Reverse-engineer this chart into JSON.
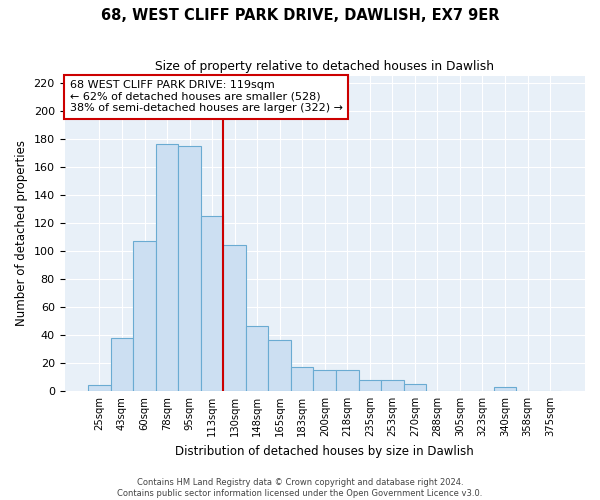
{
  "title": "68, WEST CLIFF PARK DRIVE, DAWLISH, EX7 9ER",
  "subtitle": "Size of property relative to detached houses in Dawlish",
  "xlabel": "Distribution of detached houses by size in Dawlish",
  "ylabel": "Number of detached properties",
  "bar_labels": [
    "25sqm",
    "43sqm",
    "60sqm",
    "78sqm",
    "95sqm",
    "113sqm",
    "130sqm",
    "148sqm",
    "165sqm",
    "183sqm",
    "200sqm",
    "218sqm",
    "235sqm",
    "253sqm",
    "270sqm",
    "288sqm",
    "305sqm",
    "323sqm",
    "340sqm",
    "358sqm",
    "375sqm"
  ],
  "bar_heights": [
    4,
    38,
    107,
    176,
    175,
    125,
    104,
    46,
    36,
    17,
    15,
    15,
    8,
    8,
    5,
    0,
    0,
    0,
    3,
    0,
    0
  ],
  "bar_color": "#ccdff2",
  "bar_edge_color": "#6aabd2",
  "vline_x_index": 6,
  "vline_color": "#cc0000",
  "annotation_line1": "68 WEST CLIFF PARK DRIVE: 119sqm",
  "annotation_line2": "← 62% of detached houses are smaller (528)",
  "annotation_line3": "38% of semi-detached houses are larger (322) →",
  "annotation_box_color": "white",
  "annotation_box_edgecolor": "#cc0000",
  "ylim": [
    0,
    225
  ],
  "yticks": [
    0,
    20,
    40,
    60,
    80,
    100,
    120,
    140,
    160,
    180,
    200,
    220
  ],
  "footer1": "Contains HM Land Registry data © Crown copyright and database right 2024.",
  "footer2": "Contains public sector information licensed under the Open Government Licence v3.0.",
  "background_color": "#ffffff",
  "plot_bg_color": "#e8f0f8",
  "grid_color": "#ffffff"
}
